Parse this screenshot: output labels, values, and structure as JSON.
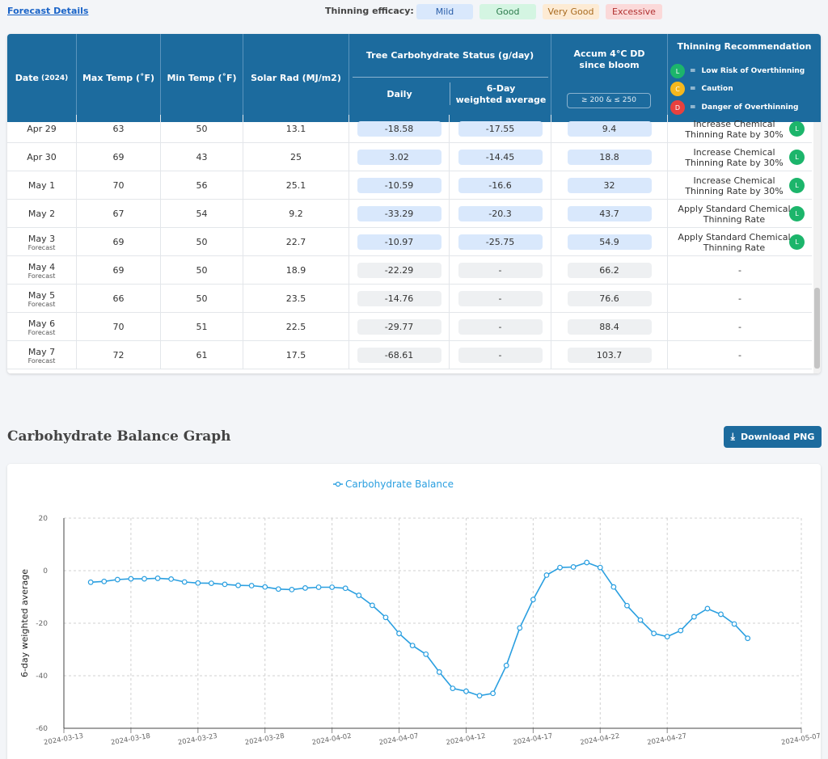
{
  "topbar": {
    "forecast_link": "Forecast Details",
    "efficacy_label": "Thinning efficacy:",
    "efficacy": [
      {
        "label": "Mild",
        "bg": "#d9e8fc",
        "fg": "#2a5ea8"
      },
      {
        "label": "Good",
        "bg": "#d4f5e2",
        "fg": "#2a7a4b"
      },
      {
        "label": "Very Good",
        "bg": "#fdebd4",
        "fg": "#a86a1f"
      },
      {
        "label": "Excessive",
        "bg": "#fbd9d9",
        "fg": "#b03030"
      }
    ]
  },
  "table": {
    "headers": {
      "date": "Date",
      "date_year": "(2024)",
      "max_temp": "Max Temp (˚F)",
      "min_temp": "Min Temp (˚F)",
      "solar": "Solar Rad (MJ/m2)",
      "carb_group": "Tree Carbohydrate Status (g/day)",
      "daily": "Daily",
      "weighted_line1": "6-Day",
      "weighted_line2": "weighted average",
      "accum_line1": "Accum 4°C DD",
      "accum_line2": "since bloom",
      "accum_range": "≥ 200 & ≤ 250",
      "thin_rec": "Thinning Recommendation"
    },
    "legend": [
      {
        "letter": "L",
        "text": "Low Risk of Overthinning",
        "color": "#1cb56b"
      },
      {
        "letter": "C",
        "text": "Caution",
        "color": "#f5b81d"
      },
      {
        "letter": "D",
        "text": "Danger of Overthinning",
        "color": "#e8413e"
      }
    ],
    "legend_eq": "=",
    "rows": [
      {
        "date": "Apr 29",
        "forecast": "",
        "max": "63",
        "min": "50",
        "solar": "13.1",
        "daily": "-18.58",
        "weighted": "-17.55",
        "dd": "9.4",
        "highlight": true,
        "rec1": "Increase Chemical",
        "rec2": "Thinning Rate by 30%",
        "badge": "L"
      },
      {
        "date": "Apr 30",
        "forecast": "",
        "max": "69",
        "min": "43",
        "solar": "25",
        "daily": "3.02",
        "weighted": "-14.45",
        "dd": "18.8",
        "highlight": true,
        "rec1": "Increase Chemical",
        "rec2": "Thinning Rate by 30%",
        "badge": "L"
      },
      {
        "date": "May 1",
        "forecast": "",
        "max": "70",
        "min": "56",
        "solar": "25.1",
        "daily": "-10.59",
        "weighted": "-16.6",
        "dd": "32",
        "highlight": true,
        "rec1": "Increase Chemical",
        "rec2": "Thinning Rate by 30%",
        "badge": "L"
      },
      {
        "date": "May 2",
        "forecast": "",
        "max": "67",
        "min": "54",
        "solar": "9.2",
        "daily": "-33.29",
        "weighted": "-20.3",
        "dd": "43.7",
        "highlight": true,
        "rec1": "Apply Standard Chemical",
        "rec2": "Thinning Rate",
        "badge": "L"
      },
      {
        "date": "May 3",
        "forecast": "Forecast",
        "max": "69",
        "min": "50",
        "solar": "22.7",
        "daily": "-10.97",
        "weighted": "-25.75",
        "dd": "54.9",
        "highlight": true,
        "rec1": "Apply Standard Chemical",
        "rec2": "Thinning Rate",
        "badge": "L"
      },
      {
        "date": "May 4",
        "forecast": "Forecast",
        "max": "69",
        "min": "50",
        "solar": "18.9",
        "daily": "-22.29",
        "weighted": "-",
        "dd": "66.2",
        "highlight": false,
        "rec1": "-",
        "rec2": "",
        "badge": ""
      },
      {
        "date": "May 5",
        "forecast": "Forecast",
        "max": "66",
        "min": "50",
        "solar": "23.5",
        "daily": "-14.76",
        "weighted": "-",
        "dd": "76.6",
        "highlight": false,
        "rec1": "-",
        "rec2": "",
        "badge": ""
      },
      {
        "date": "May 6",
        "forecast": "Forecast",
        "max": "70",
        "min": "51",
        "solar": "22.5",
        "daily": "-29.77",
        "weighted": "-",
        "dd": "88.4",
        "highlight": false,
        "rec1": "-",
        "rec2": "",
        "badge": ""
      },
      {
        "date": "May 7",
        "forecast": "Forecast",
        "max": "72",
        "min": "61",
        "solar": "17.5",
        "daily": "-68.61",
        "weighted": "-",
        "dd": "103.7",
        "highlight": false,
        "rec1": "-",
        "rec2": "",
        "badge": ""
      }
    ]
  },
  "graph": {
    "title": "Carbohydrate Balance Graph",
    "download_label": "Download PNG",
    "download_icon": "download-icon"
  },
  "chart_data": {
    "type": "line",
    "title": "",
    "xlabel": "",
    "ylabel": "6-day weighted average",
    "ylim": [
      -60,
      20
    ],
    "yticks": [
      20,
      0,
      -20,
      -40,
      -60
    ],
    "xlim": [
      "2024-03-13",
      "2024-05-07"
    ],
    "xticks": [
      "2024-03-13",
      "2024-03-18",
      "2024-03-23",
      "2024-03-28",
      "2024-04-02",
      "2024-04-07",
      "2024-04-12",
      "2024-04-17",
      "2024-04-22",
      "2024-04-27",
      "2024-05-07"
    ],
    "grid": true,
    "legend_position": "top",
    "color": "#2a9fe0",
    "series": [
      {
        "name": "Carbohydrate Balance",
        "x": [
          "2024-03-15",
          "2024-03-16",
          "2024-03-17",
          "2024-03-18",
          "2024-03-19",
          "2024-03-20",
          "2024-03-21",
          "2024-03-22",
          "2024-03-23",
          "2024-03-24",
          "2024-03-25",
          "2024-03-26",
          "2024-03-27",
          "2024-03-28",
          "2024-03-29",
          "2024-03-30",
          "2024-03-31",
          "2024-04-01",
          "2024-04-02",
          "2024-04-03",
          "2024-04-04",
          "2024-04-05",
          "2024-04-06",
          "2024-04-07",
          "2024-04-08",
          "2024-04-09",
          "2024-04-10",
          "2024-04-11",
          "2024-04-12",
          "2024-04-13",
          "2024-04-14",
          "2024-04-15",
          "2024-04-16",
          "2024-04-17",
          "2024-04-18",
          "2024-04-19",
          "2024-04-20",
          "2024-04-21",
          "2024-04-22",
          "2024-04-23",
          "2024-04-24",
          "2024-04-25",
          "2024-04-26",
          "2024-04-27",
          "2024-04-28",
          "2024-04-29",
          "2024-04-30",
          "2024-05-01",
          "2024-05-02",
          "2024-05-03"
        ],
        "values": [
          -4.4,
          -4.1,
          -3.4,
          -3.1,
          -3.1,
          -2.9,
          -3.2,
          -4.3,
          -4.7,
          -4.8,
          -5.2,
          -5.6,
          -5.7,
          -6.2,
          -7.0,
          -7.2,
          -6.6,
          -6.3,
          -6.3,
          -6.7,
          -9.4,
          -13.2,
          -17.8,
          -23.9,
          -28.5,
          -31.8,
          -38.6,
          -44.8,
          -45.9,
          -47.6,
          -46.7,
          -36.1,
          -21.8,
          -11.0,
          -1.7,
          1.2,
          1.4,
          3.1,
          1.2,
          -6.2,
          -13.3,
          -18.8,
          -23.9,
          -25.1,
          -22.8,
          -17.55,
          -14.45,
          -16.6,
          -20.3,
          -25.75
        ]
      }
    ]
  }
}
